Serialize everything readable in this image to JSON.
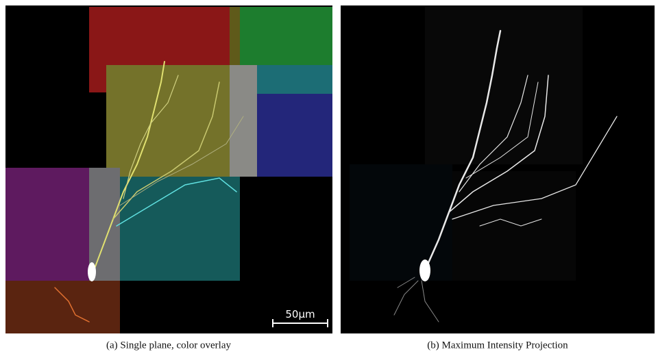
{
  "panels": [
    {
      "caption": "(a) Single plane, color overlay",
      "scale_bar": "50µm"
    },
    {
      "caption": "(b) Maximum Intensity Projection"
    }
  ]
}
